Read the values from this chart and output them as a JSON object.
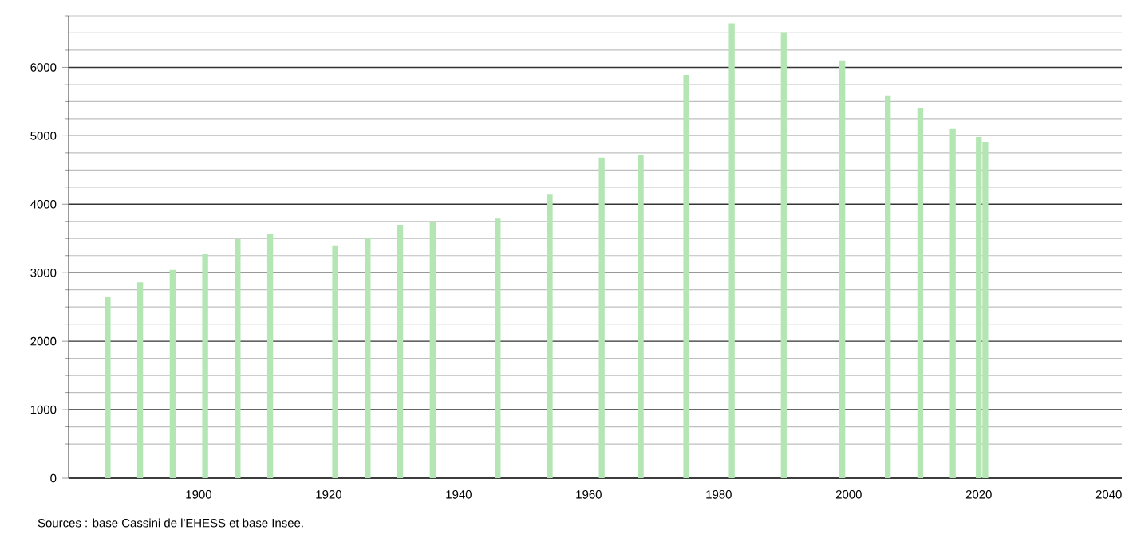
{
  "chart_data": {
    "type": "bar",
    "x": [
      1886,
      1891,
      1896,
      1901,
      1906,
      1911,
      1921,
      1926,
      1931,
      1936,
      1946,
      1954,
      1962,
      1968,
      1975,
      1982,
      1990,
      1999,
      2006,
      2011,
      2016,
      2020,
      2021
    ],
    "values": [
      2650,
      2860,
      3040,
      3270,
      3490,
      3560,
      3390,
      3510,
      3700,
      3740,
      3790,
      4140,
      4680,
      4720,
      5890,
      6640,
      6510,
      6100,
      5590,
      5400,
      5100,
      4980,
      4910
    ],
    "color": "#b3e6b3",
    "xlim": [
      1880,
      2042
    ],
    "xticks": [
      1900,
      1920,
      1940,
      1960,
      1980,
      2000,
      2020,
      2040
    ],
    "ylim": [
      0,
      6750
    ],
    "yticks": [
      0,
      {
        "value": 250,
        "label": null
      },
      {
        "value": 500,
        "label": null
      },
      {
        "value": 750,
        "label": null
      },
      1000,
      {
        "value": 1250,
        "label": null
      },
      {
        "value": 1500,
        "label": null
      },
      {
        "value": 1750,
        "label": null
      },
      2000,
      {
        "value": 2250,
        "label": null
      },
      {
        "value": 2500,
        "label": null
      },
      {
        "value": 2750,
        "label": null
      },
      3000,
      {
        "value": 3250,
        "label": null
      },
      {
        "value": 3500,
        "label": null
      },
      {
        "value": 3750,
        "label": null
      },
      4000,
      {
        "value": 4250,
        "label": null
      },
      {
        "value": 4500,
        "label": null
      },
      {
        "value": 4750,
        "label": null
      },
      5000,
      {
        "value": 5250,
        "label": null
      },
      {
        "value": 5500,
        "label": null
      },
      {
        "value": 5750,
        "label": null
      },
      6000,
      {
        "value": 6250,
        "label": null
      },
      {
        "value": 6500,
        "label": null
      },
      {
        "value": 6750,
        "label": null
      }
    ],
    "grid": "y",
    "annotations": [
      "Sources : base Cassini de l'EHESS et base Insee."
    ]
  }
}
